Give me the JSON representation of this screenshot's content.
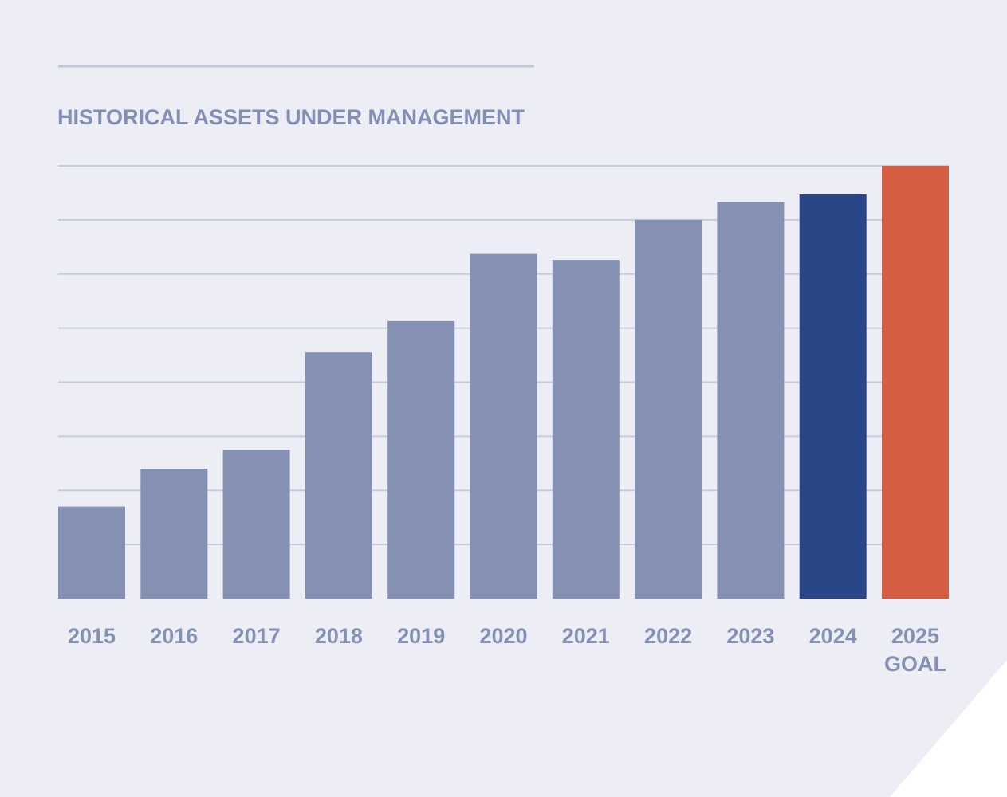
{
  "chart_data": {
    "type": "bar",
    "title": "HISTORICAL ASSETS UNDER MANAGEMENT",
    "categories": [
      [
        "2015"
      ],
      [
        "2016"
      ],
      [
        "2017"
      ],
      [
        "2018"
      ],
      [
        "2019"
      ],
      [
        "2020"
      ],
      [
        "2021"
      ],
      [
        "2022"
      ],
      [
        "2023"
      ],
      [
        "2024"
      ],
      [
        "2025",
        "GOAL"
      ]
    ],
    "values": [
      1.7,
      2.4,
      2.75,
      4.55,
      5.13,
      6.37,
      6.26,
      7.0,
      7.33,
      7.47,
      8.0
    ],
    "ylim": [
      0,
      8
    ],
    "yticks": [
      0,
      1,
      2,
      3,
      4,
      5,
      6,
      7,
      8
    ],
    "ytick_labels_shown": false,
    "grid": true,
    "colors": {
      "page_background": "#ecedf5",
      "corner_cut": "#ffffff",
      "title": "#8490b3",
      "title_rule": "#c2c7d8",
      "gridline": "#c7cbdb",
      "bar_default": "#8591b3",
      "bar_current": "#284586",
      "bar_goal": "#d45f42",
      "tick_label": "#8591b3"
    },
    "bar_color_keys": [
      "bar_default",
      "bar_default",
      "bar_default",
      "bar_default",
      "bar_default",
      "bar_default",
      "bar_default",
      "bar_default",
      "bar_default",
      "bar_current",
      "bar_goal"
    ]
  }
}
